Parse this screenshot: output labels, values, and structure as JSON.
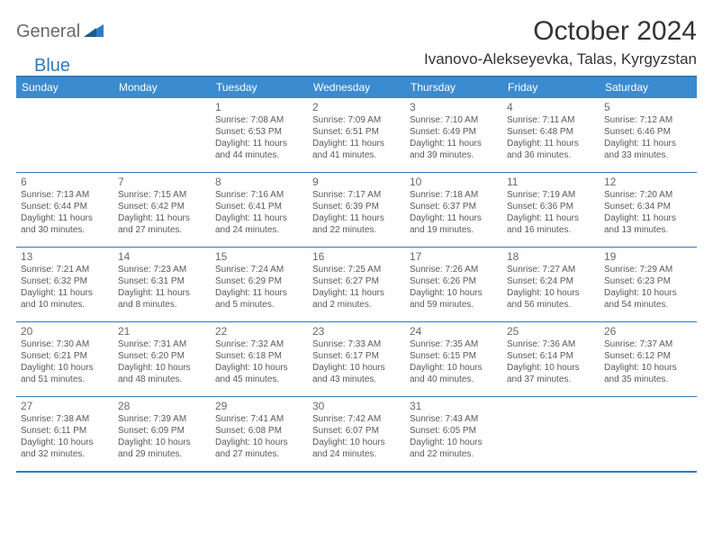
{
  "brand": {
    "general": "General",
    "blue": "Blue"
  },
  "header": {
    "month_title": "October 2024",
    "location": "Ivanovo-Alekseyevka, Talas, Kyrgyzstan"
  },
  "colors": {
    "brand_blue": "#3b8bd0",
    "border_blue": "#2f7bbf",
    "text_gray": "#6a6a6a",
    "body_text": "#5a5a5a"
  },
  "dow": [
    "Sunday",
    "Monday",
    "Tuesday",
    "Wednesday",
    "Thursday",
    "Friday",
    "Saturday"
  ],
  "weeks": [
    [
      {
        "n": "",
        "sr": "",
        "ss": "",
        "dl": ""
      },
      {
        "n": "",
        "sr": "",
        "ss": "",
        "dl": ""
      },
      {
        "n": "1",
        "sr": "Sunrise: 7:08 AM",
        "ss": "Sunset: 6:53 PM",
        "dl": "Daylight: 11 hours and 44 minutes."
      },
      {
        "n": "2",
        "sr": "Sunrise: 7:09 AM",
        "ss": "Sunset: 6:51 PM",
        "dl": "Daylight: 11 hours and 41 minutes."
      },
      {
        "n": "3",
        "sr": "Sunrise: 7:10 AM",
        "ss": "Sunset: 6:49 PM",
        "dl": "Daylight: 11 hours and 39 minutes."
      },
      {
        "n": "4",
        "sr": "Sunrise: 7:11 AM",
        "ss": "Sunset: 6:48 PM",
        "dl": "Daylight: 11 hours and 36 minutes."
      },
      {
        "n": "5",
        "sr": "Sunrise: 7:12 AM",
        "ss": "Sunset: 6:46 PM",
        "dl": "Daylight: 11 hours and 33 minutes."
      }
    ],
    [
      {
        "n": "6",
        "sr": "Sunrise: 7:13 AM",
        "ss": "Sunset: 6:44 PM",
        "dl": "Daylight: 11 hours and 30 minutes."
      },
      {
        "n": "7",
        "sr": "Sunrise: 7:15 AM",
        "ss": "Sunset: 6:42 PM",
        "dl": "Daylight: 11 hours and 27 minutes."
      },
      {
        "n": "8",
        "sr": "Sunrise: 7:16 AM",
        "ss": "Sunset: 6:41 PM",
        "dl": "Daylight: 11 hours and 24 minutes."
      },
      {
        "n": "9",
        "sr": "Sunrise: 7:17 AM",
        "ss": "Sunset: 6:39 PM",
        "dl": "Daylight: 11 hours and 22 minutes."
      },
      {
        "n": "10",
        "sr": "Sunrise: 7:18 AM",
        "ss": "Sunset: 6:37 PM",
        "dl": "Daylight: 11 hours and 19 minutes."
      },
      {
        "n": "11",
        "sr": "Sunrise: 7:19 AM",
        "ss": "Sunset: 6:36 PM",
        "dl": "Daylight: 11 hours and 16 minutes."
      },
      {
        "n": "12",
        "sr": "Sunrise: 7:20 AM",
        "ss": "Sunset: 6:34 PM",
        "dl": "Daylight: 11 hours and 13 minutes."
      }
    ],
    [
      {
        "n": "13",
        "sr": "Sunrise: 7:21 AM",
        "ss": "Sunset: 6:32 PM",
        "dl": "Daylight: 11 hours and 10 minutes."
      },
      {
        "n": "14",
        "sr": "Sunrise: 7:23 AM",
        "ss": "Sunset: 6:31 PM",
        "dl": "Daylight: 11 hours and 8 minutes."
      },
      {
        "n": "15",
        "sr": "Sunrise: 7:24 AM",
        "ss": "Sunset: 6:29 PM",
        "dl": "Daylight: 11 hours and 5 minutes."
      },
      {
        "n": "16",
        "sr": "Sunrise: 7:25 AM",
        "ss": "Sunset: 6:27 PM",
        "dl": "Daylight: 11 hours and 2 minutes."
      },
      {
        "n": "17",
        "sr": "Sunrise: 7:26 AM",
        "ss": "Sunset: 6:26 PM",
        "dl": "Daylight: 10 hours and 59 minutes."
      },
      {
        "n": "18",
        "sr": "Sunrise: 7:27 AM",
        "ss": "Sunset: 6:24 PM",
        "dl": "Daylight: 10 hours and 56 minutes."
      },
      {
        "n": "19",
        "sr": "Sunrise: 7:29 AM",
        "ss": "Sunset: 6:23 PM",
        "dl": "Daylight: 10 hours and 54 minutes."
      }
    ],
    [
      {
        "n": "20",
        "sr": "Sunrise: 7:30 AM",
        "ss": "Sunset: 6:21 PM",
        "dl": "Daylight: 10 hours and 51 minutes."
      },
      {
        "n": "21",
        "sr": "Sunrise: 7:31 AM",
        "ss": "Sunset: 6:20 PM",
        "dl": "Daylight: 10 hours and 48 minutes."
      },
      {
        "n": "22",
        "sr": "Sunrise: 7:32 AM",
        "ss": "Sunset: 6:18 PM",
        "dl": "Daylight: 10 hours and 45 minutes."
      },
      {
        "n": "23",
        "sr": "Sunrise: 7:33 AM",
        "ss": "Sunset: 6:17 PM",
        "dl": "Daylight: 10 hours and 43 minutes."
      },
      {
        "n": "24",
        "sr": "Sunrise: 7:35 AM",
        "ss": "Sunset: 6:15 PM",
        "dl": "Daylight: 10 hours and 40 minutes."
      },
      {
        "n": "25",
        "sr": "Sunrise: 7:36 AM",
        "ss": "Sunset: 6:14 PM",
        "dl": "Daylight: 10 hours and 37 minutes."
      },
      {
        "n": "26",
        "sr": "Sunrise: 7:37 AM",
        "ss": "Sunset: 6:12 PM",
        "dl": "Daylight: 10 hours and 35 minutes."
      }
    ],
    [
      {
        "n": "27",
        "sr": "Sunrise: 7:38 AM",
        "ss": "Sunset: 6:11 PM",
        "dl": "Daylight: 10 hours and 32 minutes."
      },
      {
        "n": "28",
        "sr": "Sunrise: 7:39 AM",
        "ss": "Sunset: 6:09 PM",
        "dl": "Daylight: 10 hours and 29 minutes."
      },
      {
        "n": "29",
        "sr": "Sunrise: 7:41 AM",
        "ss": "Sunset: 6:08 PM",
        "dl": "Daylight: 10 hours and 27 minutes."
      },
      {
        "n": "30",
        "sr": "Sunrise: 7:42 AM",
        "ss": "Sunset: 6:07 PM",
        "dl": "Daylight: 10 hours and 24 minutes."
      },
      {
        "n": "31",
        "sr": "Sunrise: 7:43 AM",
        "ss": "Sunset: 6:05 PM",
        "dl": "Daylight: 10 hours and 22 minutes."
      },
      {
        "n": "",
        "sr": "",
        "ss": "",
        "dl": ""
      },
      {
        "n": "",
        "sr": "",
        "ss": "",
        "dl": ""
      }
    ]
  ]
}
